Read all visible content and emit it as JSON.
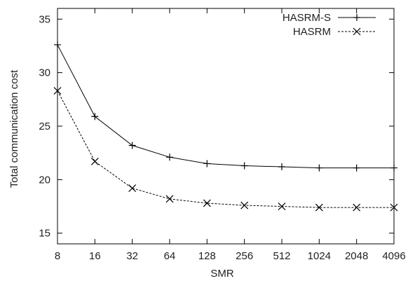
{
  "chart_data": {
    "type": "line",
    "title": "",
    "xlabel": "SMR",
    "ylabel": "Total communication cost",
    "categories": [
      "8",
      "16",
      "32",
      "64",
      "128",
      "256",
      "512",
      "1024",
      "2048",
      "4096"
    ],
    "ylim": [
      14,
      36
    ],
    "yticks": [
      15,
      20,
      25,
      30,
      35
    ],
    "grid": false,
    "legend_position": "top-right",
    "series": [
      {
        "name": "HASRM-S",
        "marker": "plus",
        "line": "solid",
        "color": "#000000",
        "values": [
          32.6,
          25.9,
          23.2,
          22.1,
          21.5,
          21.3,
          21.2,
          21.1,
          21.1,
          21.1
        ]
      },
      {
        "name": "HASRM",
        "marker": "cross",
        "line": "dashed",
        "color": "#000000",
        "values": [
          28.3,
          21.7,
          19.2,
          18.2,
          17.8,
          17.6,
          17.5,
          17.4,
          17.4,
          17.4
        ]
      }
    ]
  }
}
